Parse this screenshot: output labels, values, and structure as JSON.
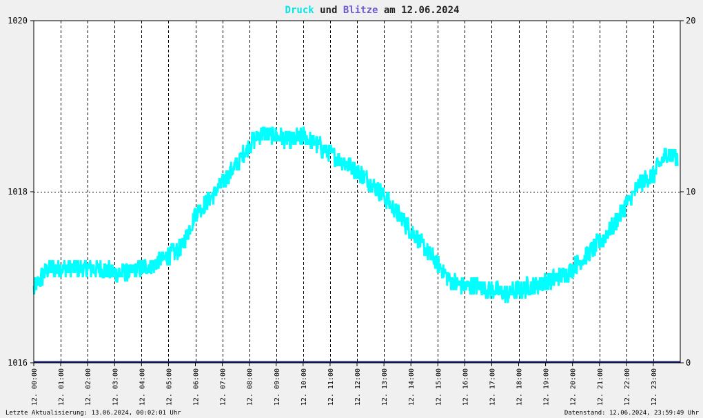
{
  "chart_data": {
    "type": "line",
    "title": {
      "parts": [
        {
          "text": "Druck",
          "color": "#00e5e5"
        },
        {
          "text": " und ",
          "color": "#222222"
        },
        {
          "text": "Blitze",
          "color": "#6a5acd"
        },
        {
          "text": " am 12.06.2024",
          "color": "#222222"
        }
      ]
    },
    "left_axis": {
      "min": 1016,
      "max": 1020,
      "ticks": [
        1016,
        1018,
        1020
      ],
      "tick_labels": [
        "1016",
        "1018",
        "1020"
      ]
    },
    "right_axis": {
      "min": 0,
      "max": 20,
      "ticks": [
        0,
        10,
        20
      ],
      "tick_labels": [
        "0",
        "10",
        "20"
      ]
    },
    "x_axis": {
      "min": 0,
      "max": 24,
      "unit": "hours",
      "ticks": [
        0,
        1,
        2,
        3,
        4,
        5,
        6,
        7,
        8,
        9,
        10,
        11,
        12,
        13,
        14,
        15,
        16,
        17,
        18,
        19,
        20,
        21,
        22,
        23
      ],
      "tick_labels": [
        "12. 00:00",
        "12. 01:00",
        "12. 02:00",
        "12. 03:00",
        "12. 04:00",
        "12. 05:00",
        "12. 06:00",
        "12. 07:00",
        "12. 08:00",
        "12. 09:00",
        "12. 10:00",
        "12. 11:00",
        "12. 12:00",
        "12. 13:00",
        "12. 14:00",
        "12. 15:00",
        "12. 16:00",
        "12. 17:00",
        "12. 18:00",
        "12. 19:00",
        "12. 20:00",
        "12. 21:00",
        "12. 22:00",
        "12. 23:00"
      ]
    },
    "grid": true,
    "series": [
      {
        "key": "druck",
        "color": "#00ffff",
        "axis": "left",
        "x": [
          0,
          0.5,
          1,
          1.5,
          2,
          2.5,
          3,
          3.5,
          4,
          4.5,
          5,
          5.5,
          6,
          6.5,
          7,
          7.5,
          8,
          8.5,
          9,
          9.5,
          10,
          10.5,
          11,
          11.5,
          12,
          12.5,
          13,
          13.5,
          14,
          14.5,
          15,
          15.5,
          16,
          16.5,
          17,
          17.5,
          18,
          18.5,
          19,
          19.5,
          20,
          20.5,
          21,
          21.5,
          22,
          22.5,
          23,
          23.5,
          23.9
        ],
        "values": [
          1016.85,
          1017.1,
          1017.1,
          1017.1,
          1017.1,
          1017.1,
          1017.05,
          1017.05,
          1017.1,
          1017.15,
          1017.25,
          1017.35,
          1017.75,
          1017.9,
          1018.1,
          1018.3,
          1018.55,
          1018.7,
          1018.65,
          1018.6,
          1018.65,
          1018.55,
          1018.45,
          1018.35,
          1018.25,
          1018.1,
          1017.95,
          1017.75,
          1017.55,
          1017.35,
          1017.15,
          1016.95,
          1016.9,
          1016.9,
          1016.85,
          1016.8,
          1016.85,
          1016.9,
          1016.95,
          1017.0,
          1017.1,
          1017.25,
          1017.4,
          1017.6,
          1017.85,
          1018.1,
          1018.2,
          1018.45,
          1018.4
        ]
      },
      {
        "key": "blitze",
        "color": "#1a237e",
        "axis": "right",
        "x": [
          0,
          24
        ],
        "values": [
          0,
          0
        ]
      }
    ]
  },
  "footer": {
    "left": "Letzte Aktualisierung: 13.06.2024, 00:02:01 Uhr",
    "right": "Datenstand: 12.06.2024, 23:59:49 Uhr"
  }
}
